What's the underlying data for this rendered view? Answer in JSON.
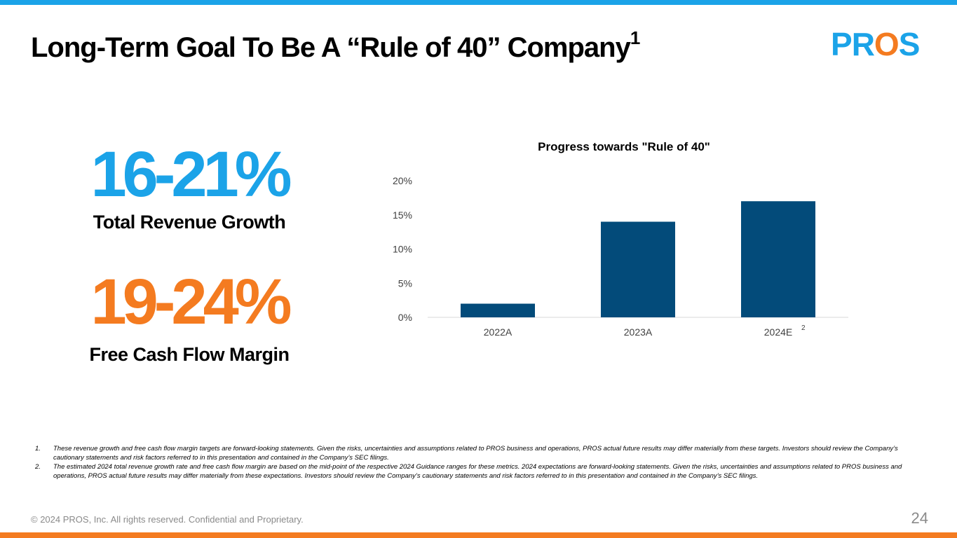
{
  "slide": {
    "title": "Long-Term Goal To Be A “Rule of 40” Company",
    "title_superscript": "1",
    "page_number": "24",
    "copyright": "© 2024 PROS, Inc. All rights reserved. Confidential and Proprietary."
  },
  "logo": {
    "text": "PROS",
    "color_blue": "#1ba3e8",
    "color_orange": "#f47b20"
  },
  "metrics": [
    {
      "value": "16-21%",
      "label": "Total Revenue Growth",
      "color": "#1ba3e8"
    },
    {
      "value": "19-24%",
      "label": "Free Cash Flow Margin",
      "color": "#f47b20"
    }
  ],
  "chart_data": {
    "type": "bar",
    "title": "Progress towards \"Rule of 40\"",
    "categories": [
      "2022A",
      "2023A",
      "2024E"
    ],
    "category_superscripts": [
      "",
      "",
      "2"
    ],
    "values": [
      2,
      14,
      17
    ],
    "y_ticks": [
      "0%",
      "5%",
      "10%",
      "15%",
      "20%"
    ],
    "ylim": [
      0,
      20
    ],
    "xlabel": "",
    "ylabel": "",
    "bar_color": "#034b7a",
    "grid": false,
    "legend": "none"
  },
  "footnotes": [
    {
      "num": "1.",
      "text": "These revenue growth and free cash flow margin targets are forward-looking statements. Given the risks, uncertainties and assumptions related to PROS business and operations, PROS actual future results may differ materially from these targets. Investors should review the Company’s cautionary statements and risk factors referred to in this presentation and contained in the Company’s SEC filings."
    },
    {
      "num": "2.",
      "text": "The estimated 2024 total revenue growth rate and free cash flow margin are based on the mid-point of the respective 2024 Guidance ranges for these metrics. 2024 expectations are forward-looking statements. Given the risks, uncertainties and assumptions related to PROS business and operations, PROS actual future results may differ materially from these expectations. Investors should review the Company’s cautionary statements and risk factors referred to in this presentation and contained in the Company’s SEC filings."
    }
  ]
}
